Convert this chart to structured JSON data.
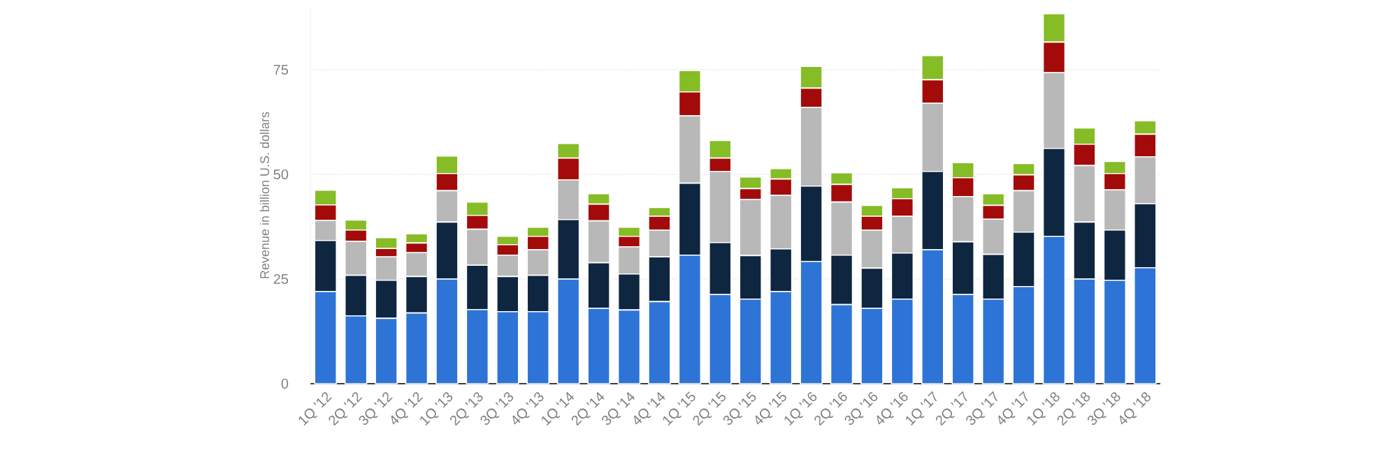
{
  "chart_data": {
    "type": "bar",
    "stacked": true,
    "ylabel": "Revenue in billion U.S. dollars",
    "categories": [
      "1Q '12",
      "2Q '12",
      "3Q '12",
      "4Q '12",
      "1Q '13",
      "2Q '13",
      "3Q '13",
      "4Q '13",
      "1Q '14",
      "2Q '14",
      "3Q '14",
      "4Q '14",
      "1Q '15",
      "2Q '15",
      "3Q '15",
      "4Q '15",
      "1Q '16",
      "2Q '16",
      "3Q '16",
      "4Q '16",
      "1Q '17",
      "2Q '17",
      "3Q '17",
      "4Q '17",
      "1Q '18",
      "2Q '18",
      "3Q '18",
      "4Q '18"
    ],
    "series": [
      {
        "color": "#2e74d6",
        "values": [
          22.0,
          16.2,
          15.6,
          16.9,
          25.0,
          17.7,
          17.2,
          17.2,
          25.0,
          18.0,
          17.6,
          19.6,
          30.7,
          21.3,
          20.2,
          22.0,
          29.2,
          18.9,
          18.0,
          20.2,
          32.0,
          21.3,
          20.2,
          23.2,
          35.2,
          25.0,
          24.7,
          27.7
        ]
      },
      {
        "color": "#0f2640",
        "values": [
          12.2,
          9.7,
          9.1,
          8.7,
          13.6,
          10.6,
          8.4,
          8.7,
          14.2,
          10.9,
          8.6,
          10.7,
          17.2,
          12.4,
          10.4,
          10.2,
          18.0,
          11.8,
          9.6,
          11.0,
          18.7,
          12.6,
          10.7,
          13.0,
          21.0,
          13.6,
          12.0,
          15.3
        ]
      },
      {
        "color": "#b8b8b8",
        "values": [
          4.8,
          8.1,
          5.6,
          5.7,
          7.5,
          8.6,
          5.1,
          6.1,
          9.5,
          10.0,
          6.5,
          6.4,
          16.1,
          17.0,
          13.4,
          12.8,
          18.8,
          12.7,
          9.1,
          8.8,
          16.3,
          10.8,
          8.4,
          9.9,
          18.1,
          13.5,
          9.6,
          11.2
        ]
      },
      {
        "color": "#a30b0b",
        "values": [
          3.7,
          2.7,
          2.0,
          2.3,
          4.1,
          3.3,
          2.5,
          3.2,
          5.2,
          4.0,
          2.5,
          3.3,
          5.7,
          3.2,
          2.6,
          3.9,
          4.6,
          4.2,
          3.3,
          4.2,
          5.6,
          4.5,
          3.3,
          3.8,
          7.3,
          5.1,
          3.9,
          5.4
        ]
      },
      {
        "color": "#86bc25",
        "values": [
          3.5,
          2.4,
          2.6,
          2.2,
          4.2,
          3.2,
          2.0,
          2.2,
          3.5,
          2.5,
          2.2,
          2.1,
          5.1,
          4.2,
          2.8,
          2.5,
          5.2,
          2.8,
          2.6,
          2.6,
          5.8,
          3.6,
          2.8,
          2.7,
          6.8,
          3.9,
          2.9,
          3.2
        ]
      }
    ],
    "ylim": [
      0,
      90
    ],
    "yticks": [
      0,
      25,
      50,
      75
    ],
    "grid": "y"
  }
}
